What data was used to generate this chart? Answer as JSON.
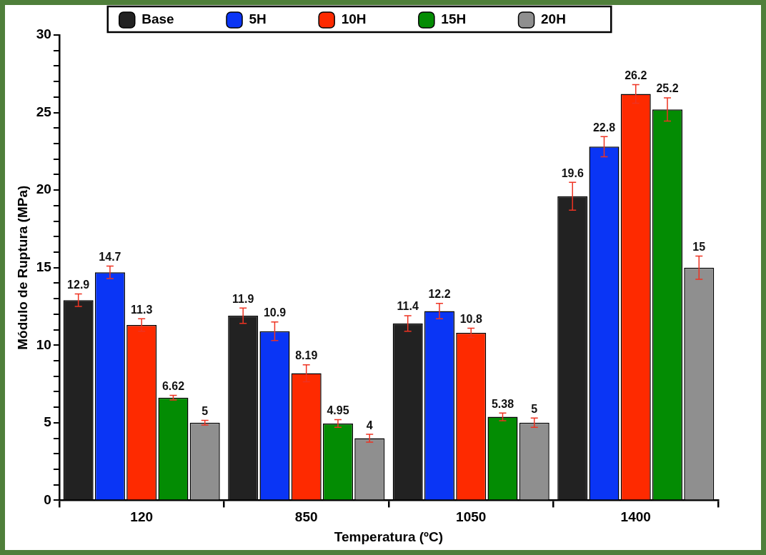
{
  "chart_data": {
    "type": "bar",
    "xlabel": "Temperatura (ºC)",
    "ylabel": "Módulo de Ruptura (MPa)",
    "categories": [
      "120",
      "850",
      "1050",
      "1400"
    ],
    "series": [
      {
        "name": "Base",
        "color": "#222222",
        "values": [
          12.9,
          11.9,
          11.4,
          19.6
        ],
        "errors": [
          0.4,
          0.5,
          0.5,
          0.9
        ]
      },
      {
        "name": "5H",
        "color": "#0a35f5",
        "values": [
          14.7,
          10.9,
          12.2,
          22.8
        ],
        "errors": [
          0.4,
          0.6,
          0.5,
          0.65
        ]
      },
      {
        "name": "10H",
        "color": "#fe2a00",
        "values": [
          11.3,
          8.19,
          10.8,
          26.2
        ],
        "errors": [
          0.4,
          0.55,
          0.3,
          0.6
        ]
      },
      {
        "name": "15H",
        "color": "#038c03",
        "values": [
          6.62,
          4.95,
          5.38,
          25.2
        ],
        "errors": [
          0.15,
          0.25,
          0.25,
          0.75
        ]
      },
      {
        "name": "20H",
        "color": "#8f8f8f",
        "values": [
          5,
          4,
          5,
          15
        ],
        "errors": [
          0.15,
          0.25,
          0.3,
          0.75
        ]
      }
    ],
    "ylim": [
      0,
      30
    ],
    "yticks": [
      0,
      {
        "value": 1,
        "label": null
      },
      {
        "value": 2,
        "label": null
      },
      {
        "value": 3,
        "label": null
      },
      {
        "value": 4,
        "label": null
      },
      5,
      {
        "value": 6,
        "label": null
      },
      {
        "value": 7,
        "label": null
      },
      {
        "value": 8,
        "label": null
      },
      {
        "value": 9,
        "label": null
      },
      10,
      {
        "value": 11,
        "label": null
      },
      {
        "value": 12,
        "label": null
      },
      {
        "value": 13,
        "label": null
      },
      {
        "value": 14,
        "label": null
      },
      15,
      {
        "value": 16,
        "label": null
      },
      {
        "value": 17,
        "label": null
      },
      {
        "value": 18,
        "label": null
      },
      {
        "value": 19,
        "label": null
      },
      20,
      {
        "value": 21,
        "label": null
      },
      {
        "value": 22,
        "label": null
      },
      {
        "value": 23,
        "label": null
      },
      {
        "value": 24,
        "label": null
      },
      25,
      {
        "value": 26,
        "label": null
      },
      {
        "value": 27,
        "label": null
      },
      {
        "value": 28,
        "label": null
      },
      {
        "value": 29,
        "label": null
      },
      30
    ],
    "data_labels": true,
    "grid": false,
    "legend": "top"
  }
}
